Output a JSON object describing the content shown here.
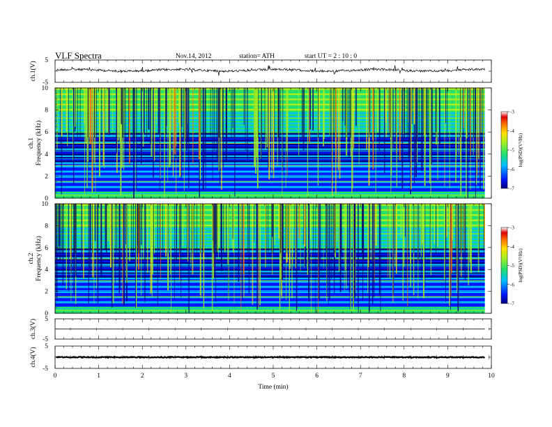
{
  "header": {
    "title": "VLF  Spectra",
    "date": "Nov.14, 2012",
    "station": "station= ATH",
    "start": "start  UT  =   2  : 10 : 0"
  },
  "colors": {
    "colormap": [
      "#000080",
      "#0018ff",
      "#00bfff",
      "#23e06b",
      "#a8f020",
      "#ffe000",
      "#ff7000",
      "#e00000",
      "#ffffff"
    ],
    "trace": "#000000"
  },
  "chart_data": [
    {
      "type": "line",
      "name": "ch1-waveform",
      "ylabel": "ch.1(V)",
      "ylim": [
        -5,
        5
      ],
      "yticks": [
        "5",
        "-5"
      ],
      "xlim": [
        0,
        10
      ],
      "approx_level": 0.4
    },
    {
      "type": "heatmap",
      "name": "ch1-spectrogram",
      "ylabel_top": "ch.1",
      "ylabel": "Frequency  (kHz)",
      "yticks": [
        "0",
        "2",
        "4",
        "6",
        "8",
        "10"
      ],
      "ylim": [
        0,
        10
      ],
      "xlim": [
        0,
        10
      ],
      "data_end_min": 9.85,
      "colorbar": {
        "label": "log(PSD)(V²/Hz)",
        "ticks": [
          "-3",
          "-4",
          "-5",
          "-6",
          "-7"
        ],
        "range": [
          -7,
          -3
        ]
      }
    },
    {
      "type": "heatmap",
      "name": "ch2-spectrogram",
      "ylabel_top": "ch.2",
      "ylabel": "Frequency  (kHz)",
      "yticks": [
        "0",
        "2",
        "4",
        "6",
        "8",
        "10"
      ],
      "ylim": [
        0,
        10
      ],
      "xlim": [
        0,
        10
      ],
      "data_end_min": 9.85,
      "colorbar": {
        "label": "log(PSD)(V²/Hz)",
        "ticks": [
          "-3",
          "-4",
          "-5",
          "-6",
          "-7"
        ],
        "range": [
          -7,
          -3
        ]
      }
    },
    {
      "type": "line",
      "name": "ch3-waveform",
      "ylabel": "ch.3(V)",
      "ylim": [
        -5,
        5
      ],
      "yticks": [
        "5",
        "-5"
      ],
      "xlim": [
        0,
        10
      ],
      "approx_level": 0
    },
    {
      "type": "line",
      "name": "ch4-waveform",
      "ylabel": "ch.4(V)",
      "ylim": [
        -5,
        5
      ],
      "yticks": [
        "5",
        "-5"
      ],
      "xlim": [
        0,
        10
      ],
      "approx_level": 0
    }
  ],
  "xaxis": {
    "label": "Time  (min)",
    "ticks": [
      "0",
      "1",
      "2",
      "3",
      "4",
      "5",
      "6",
      "7",
      "8",
      "9",
      "10"
    ]
  }
}
